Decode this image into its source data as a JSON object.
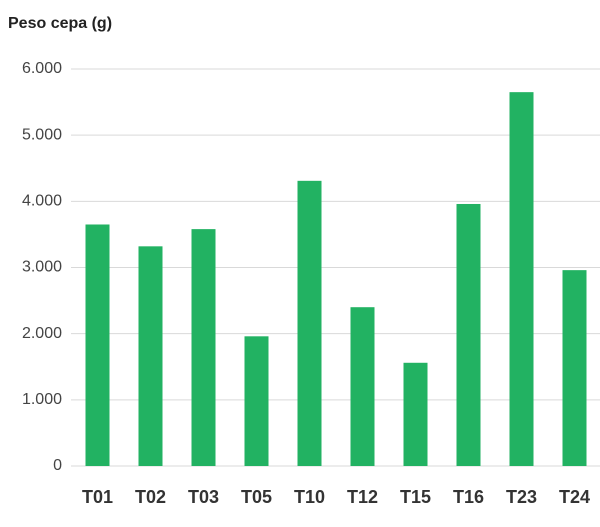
{
  "chart_data": {
    "type": "bar",
    "title": "Peso cepa (g)",
    "categories": [
      "T01",
      "T02",
      "T03",
      "T05",
      "T10",
      "T12",
      "T15",
      "T16",
      "T23",
      "T24"
    ],
    "values": [
      3650,
      3320,
      3580,
      1960,
      4310,
      2400,
      1560,
      3960,
      5650,
      2960
    ],
    "color": "#22b262",
    "ylim": [
      0,
      6000
    ],
    "yticks": [
      0,
      {
        "value": 1000,
        "label": "1.000"
      },
      {
        "value": 2000,
        "label": "2.000"
      },
      {
        "value": 3000,
        "label": "3.000"
      },
      {
        "value": 4000,
        "label": "4.000"
      },
      {
        "value": 5000,
        "label": "5.000"
      },
      {
        "value": 6000,
        "label": "6.000"
      }
    ],
    "grid": true
  }
}
